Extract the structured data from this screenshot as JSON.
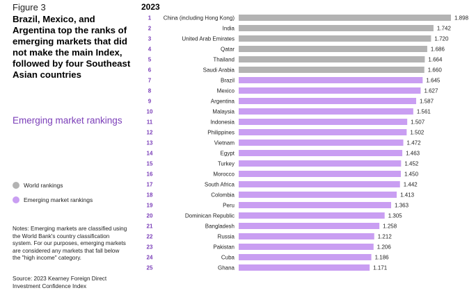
{
  "figure_label": "Figure 3",
  "headline": "Brazil, Mexico, and Argentina top the ranks of emerging markets that did not make the main Index, followed by four Southeast Asian countries",
  "subtitle": "Emerging market rankings",
  "legend": [
    {
      "label": "World rankings",
      "color": "#b3b3b3"
    },
    {
      "label": "Emerging market rankings",
      "color": "#c99ef2"
    }
  ],
  "notes": "Notes: Emerging markets are classified using the World Bank's country classification system. For our purposes, emerging markets are considered any markets that fall below the \"high income\" category.",
  "source": "Source: 2023 Kearney Foreign Direct Investment Confidence Index",
  "colors": {
    "world": "#b3b3b3",
    "emerging": "#c99ef2",
    "rank_text": "#7a3db8"
  },
  "chart_data": {
    "type": "bar",
    "orientation": "horizontal",
    "title": "2023",
    "ranks": [
      1,
      2,
      3,
      4,
      5,
      6,
      7,
      8,
      9,
      10,
      11,
      12,
      13,
      14,
      15,
      16,
      17,
      18,
      19,
      20,
      21,
      22,
      23,
      24,
      25
    ],
    "categories": [
      "China (including Hong Kong)",
      "India",
      "United Arab Emirates",
      "Qatar",
      "Thailand",
      "Saudi Arabia",
      "Brazil",
      "Mexico",
      "Argentina",
      "Malaysia",
      "Indonesia",
      "Philippines",
      "Vietnam",
      "Egypt",
      "Turkey",
      "Morocco",
      "South Africa",
      "Colombia",
      "Peru",
      "Dominican Republic",
      "Bangladesh",
      "Russia",
      "Pakistan",
      "Cuba",
      "Ghana"
    ],
    "values": [
      1.898,
      1.742,
      1.72,
      1.686,
      1.664,
      1.66,
      1.645,
      1.627,
      1.587,
      1.561,
      1.507,
      1.502,
      1.472,
      1.463,
      1.452,
      1.45,
      1.442,
      1.413,
      1.363,
      1.305,
      1.258,
      1.212,
      1.206,
      1.186,
      1.171
    ],
    "value_labels": [
      "1.898",
      "1.742",
      "1.720",
      "1.686",
      "1.664",
      "1.660",
      "1.645",
      "1.627",
      "1.587",
      "1.561",
      "1.507",
      "1.502",
      "1.472",
      "1.463",
      "1.452",
      "1.450",
      "1.442",
      "1.413",
      "1.363",
      "1.305",
      "1.258",
      "1.212",
      "1.206",
      "1.186",
      "1.171"
    ],
    "group": [
      "world",
      "world",
      "world",
      "world",
      "world",
      "world",
      "emerging",
      "emerging",
      "emerging",
      "emerging",
      "emerging",
      "emerging",
      "emerging",
      "emerging",
      "emerging",
      "emerging",
      "emerging",
      "emerging",
      "emerging",
      "emerging",
      "emerging",
      "emerging",
      "emerging",
      "emerging",
      "emerging"
    ],
    "xlim": [
      0,
      1.898
    ],
    "grid": false
  }
}
